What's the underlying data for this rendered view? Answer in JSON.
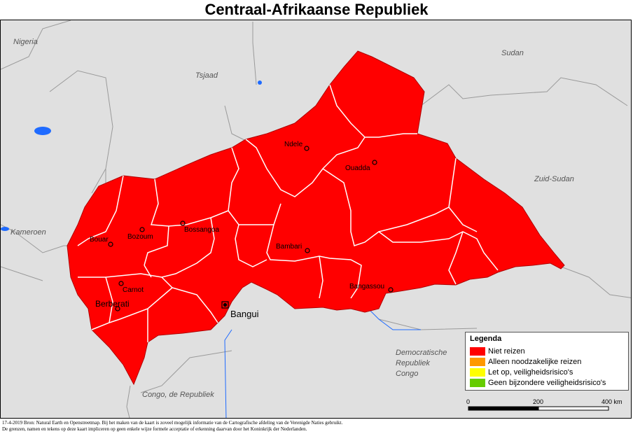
{
  "title": "Centraal-Afrikaanse Republiek",
  "countries": {
    "nigeria": "Nigeria",
    "tsjaad": "Tsjaad",
    "sudan": "Sudan",
    "zuid_sudan": "Zuid-Sudan",
    "kameroen": "Kameroen",
    "drc_line1": "Democratische",
    "drc_line2": "Republiek",
    "drc_line3": "Congo",
    "congo": "Congo, de Republiek"
  },
  "cities": {
    "ndele": "Ndele",
    "ouadda": "Ouadda",
    "bossangoa": "Bossangoa",
    "bozoum": "Bozoum",
    "bouar": "Bouar",
    "bambari": "Bambari",
    "carnot": "Carnot",
    "berberati": "Berberati",
    "bangui": "Bangui",
    "bangassou": "Bangassou"
  },
  "legend": {
    "heading": "Legenda",
    "items": [
      {
        "label": "Niet reizen",
        "color": "#ff0000"
      },
      {
        "label": "Alleen noodzakelijke reizen",
        "color": "#ff9900"
      },
      {
        "label": "Let op, veiligheidsrisico's",
        "color": "#ffff00"
      },
      {
        "label": "Geen bijzondere veiligheidsrisico's",
        "color": "#66cc00"
      }
    ]
  },
  "scale": {
    "t0": "0",
    "t1": "200",
    "t2": "400 km"
  },
  "footer": {
    "line1": "17-4-2019 Bron: Natural Earth en Openstreetmap. Bij het maken van de kaart is zoveel mogelijk informatie van de Cartografische afdeling van de Verenigde Naties gebruikt.",
    "line2": "De grenzen, namen en tekens op deze kaart impliceren op geen enkele wijze formele acceptatie of erkenning daarvan door het Koninkrijk der Nederlanden."
  },
  "colors": {
    "land": "#e0e0e0",
    "car": "#ff0000",
    "water": "#1f6bff",
    "border": "#ffffff"
  }
}
